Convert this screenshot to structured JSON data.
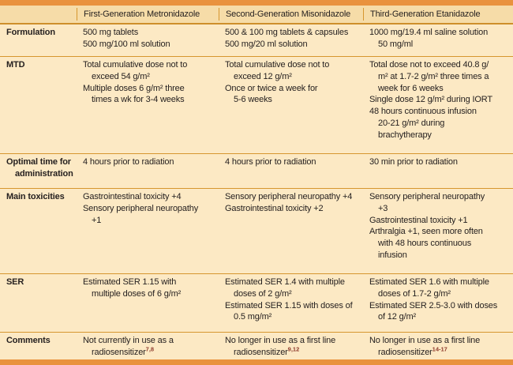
{
  "colors": {
    "band_orange": "#E9923E",
    "header_bg": "#F6DCA8",
    "body_bg": "#FCE9C4",
    "rule_orange": "#D6962F",
    "text": "#262120",
    "reference_red": "#8E3A2C"
  },
  "header": {
    "cols": [
      "First-Generation Metronidazole",
      "Second-Generation Misonidazole",
      "Third-Generation Etanidazole"
    ]
  },
  "rows": [
    {
      "label": [
        "Formulation"
      ],
      "cells": [
        [
          "500 mg tablets",
          "500 mg/100 ml solution"
        ],
        [
          "500 & 100 mg tablets & capsules",
          "500 mg/20 ml solution"
        ],
        [
          "1000 mg/19.4 ml saline solution",
          "50 mg/ml"
        ]
      ]
    },
    {
      "label": [
        "MTD"
      ],
      "cells": [
        [
          "Total cumulative dose not to",
          "exceed 54 g/m²",
          "Multiple doses 6 g/m² three",
          "times a wk for 3-4 weeks"
        ],
        [
          "Total cumulative dose not to",
          "exceed 12 g/m²",
          "Once or twice a week for",
          "5-6 weeks"
        ],
        [
          "Total dose not to exceed 40.8 g/",
          "m² at 1.7-2 g/m² three times a",
          "week for 6 weeks",
          "Single dose 12 g/m² during IORT",
          "48 hours continuous infusion",
          "20-21 g/m² during",
          "brachytherapy"
        ]
      ]
    },
    {
      "label": [
        "Optimal time for",
        "administration"
      ],
      "cells": [
        [
          "4 hours prior to radiation"
        ],
        [
          "4 hours prior to radiation"
        ],
        [
          "30 min prior to radiation"
        ]
      ]
    },
    {
      "label": [
        "Main toxicities"
      ],
      "cells": [
        [
          "Gastrointestinal toxicity +4",
          "Sensory peripheral neuropathy",
          "+1"
        ],
        [
          "Sensory peripheral neuropathy +4",
          "Gastrointestinal toxicity +2"
        ],
        [
          "Sensory peripheral neuropathy",
          "+3",
          "Gastrointestinal toxicity +1",
          "Arthralgia +1, seen more often",
          "with 48 hours continuous",
          "infusion"
        ]
      ]
    },
    {
      "label": [
        "SER"
      ],
      "cells": [
        [
          "Estimated SER 1.15 with",
          "multiple doses of 6 g/m²"
        ],
        [
          "Estimated SER 1.4 with multiple",
          "doses of 2 g/m²",
          "Estimated SER 1.15 with doses of",
          "0.5 mg/m²"
        ],
        [
          "Estimated SER 1.6 with multiple",
          "doses of 1.7-2 g/m²",
          "Estimated SER 2.5-3.0 with doses",
          "of 12 g/m²"
        ]
      ]
    },
    {
      "label": [
        "Comments"
      ],
      "cells": [
        [
          "Not currently in use as a",
          {
            "text": "radiosensitizer",
            "ref": "7,8"
          }
        ],
        [
          "No longer in use as a first line",
          {
            "text": "radiosensitizer",
            "ref": "9,12"
          }
        ],
        [
          "No longer in use as a first line",
          {
            "text": "radiosensitizer",
            "ref": "14-17"
          }
        ]
      ]
    }
  ]
}
